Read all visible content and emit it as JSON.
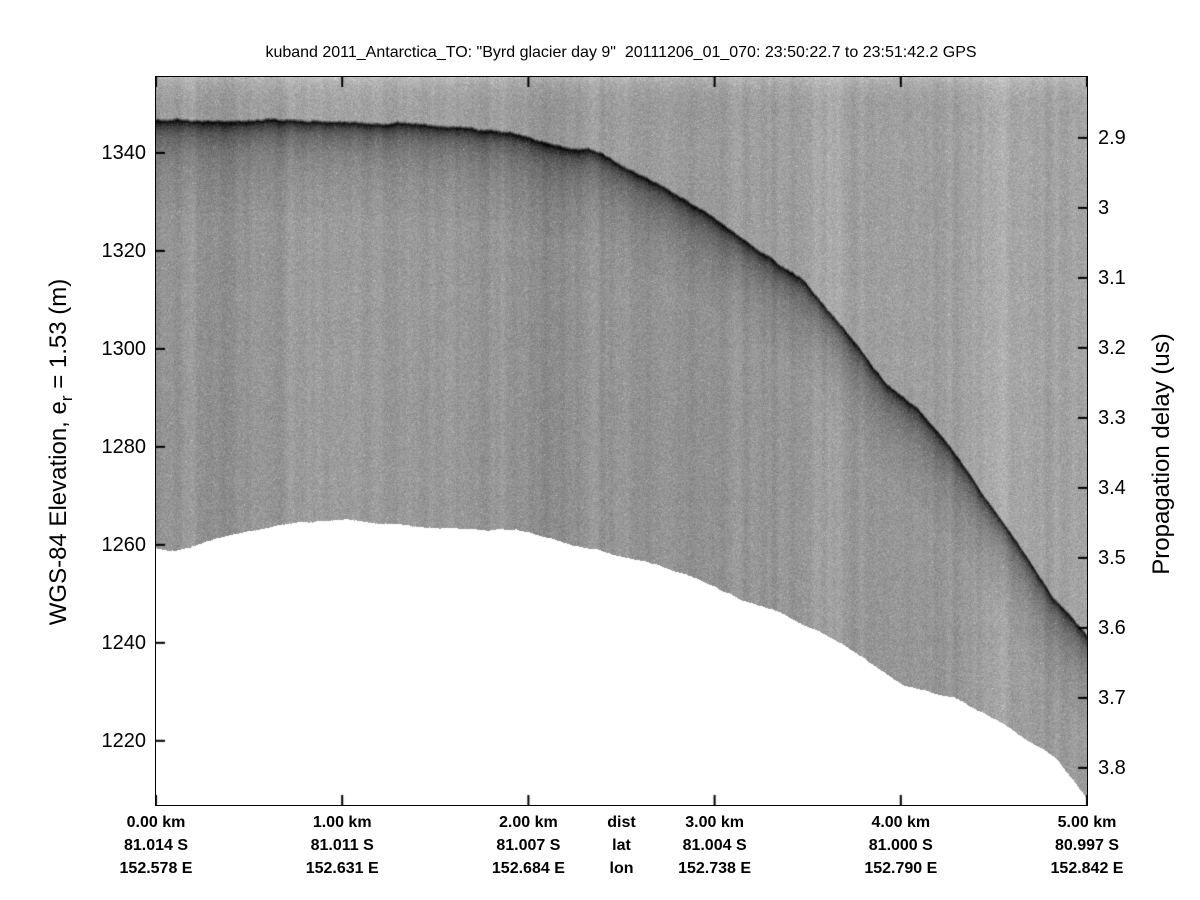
{
  "title": "kuband 2011_Antarctica_TO: \"Byrd glacier day 9\"  20111206_01_070: 23:50:22.7 to 23:51:42.2 GPS",
  "left_axis": {
    "label_pre": "WGS-84 Elevation, e",
    "label_sub": "r",
    "label_post": " = 1.53 (m)",
    "ticks": [
      "1340",
      "1320",
      "1300",
      "1280",
      "1260",
      "1240",
      "1220"
    ]
  },
  "right_axis": {
    "label": "Propagation delay (us)",
    "ticks": [
      "2.9",
      "3",
      "3.1",
      "3.2",
      "3.3",
      "3.4",
      "3.5",
      "3.6",
      "3.7",
      "3.8"
    ]
  },
  "x_axis": {
    "header": {
      "dist": "dist",
      "lat": "lat",
      "lon": "lon"
    },
    "columns": [
      {
        "dist": "0.00 km",
        "lat": "81.014 S",
        "lon": "152.578 E"
      },
      {
        "dist": "1.00 km",
        "lat": "81.011 S",
        "lon": "152.631 E"
      },
      {
        "dist": "2.00 km",
        "lat": "81.007 S",
        "lon": "152.684 E"
      },
      {
        "dist": "3.00 km",
        "lat": "81.004 S",
        "lon": "152.738 E"
      },
      {
        "dist": "4.00 km",
        "lat": "81.000 S",
        "lon": "152.790 E"
      },
      {
        "dist": "5.00 km",
        "lat": "80.997 S",
        "lon": "152.842 E"
      }
    ]
  },
  "chart_data": {
    "type": "heatmap",
    "subtype": "radar-echogram",
    "title": "kuband 2011_Antarctica_TO: \"Byrd glacier day 9\"  20111206_01_070: 23:50:22.7 to 23:51:42.2 GPS",
    "left_ylabel": "WGS-84 Elevation, e_r = 1.53 (m)",
    "right_ylabel": "Propagation delay (us)",
    "x_label_rows": [
      "dist",
      "lat",
      "lon"
    ],
    "x_km": [
      0,
      1,
      2,
      3,
      4,
      5
    ],
    "x_lat_S": [
      81.014,
      81.011,
      81.007,
      81.004,
      81.0,
      80.997
    ],
    "x_lon_E": [
      152.578,
      152.631,
      152.684,
      152.738,
      152.79,
      152.842
    ],
    "x_lim_km": [
      0,
      5
    ],
    "left_ylim": [
      1206.9,
      1355.5
    ],
    "left_yticks": [
      1340,
      1320,
      1300,
      1280,
      1260,
      1240,
      1220
    ],
    "right_ylim": [
      2.813,
      3.853
    ],
    "right_yticks": [
      2.9,
      3.0,
      3.1,
      3.2,
      3.3,
      3.4,
      3.5,
      3.6,
      3.7,
      3.8
    ],
    "header_position_km": 2.5,
    "grid": false,
    "legend": false,
    "series": [
      {
        "name": "ice-surface-echo",
        "x_km": [
          0.0,
          0.5,
          1.0,
          1.5,
          1.86,
          2.13,
          2.4,
          2.67,
          2.94,
          3.21,
          3.48,
          3.75,
          3.91,
          4.09,
          4.27,
          4.45,
          4.63,
          4.81,
          5.0
        ],
        "elevation_m": [
          1346.5,
          1347.0,
          1346.8,
          1345.6,
          1344.3,
          1342.2,
          1339.6,
          1333.9,
          1328.3,
          1320.8,
          1314.0,
          1302.0,
          1293.6,
          1288.1,
          1279.3,
          1269.1,
          1259.5,
          1249.2,
          1240.9
        ]
      },
      {
        "name": "data-window-bottom",
        "x_km": [
          0.0,
          0.11,
          0.4,
          0.73,
          1.0,
          1.32,
          1.54,
          1.93,
          2.25,
          2.62,
          2.9,
          3.15,
          3.35,
          3.7,
          4.02,
          4.29,
          4.56,
          4.83,
          5.0
        ],
        "elevation_m": [
          1259.3,
          1259.1,
          1261.9,
          1264.6,
          1265.0,
          1264.2,
          1263.5,
          1263.3,
          1260.3,
          1257.2,
          1253.7,
          1249.2,
          1246.9,
          1239.5,
          1231.7,
          1229.2,
          1223.5,
          1216.5,
          1208.1
        ]
      }
    ],
    "colors": {
      "background_gray": "#999999",
      "surface_echo_dark": "#1f1f1f",
      "no_data_white": "#ffffff",
      "axis": "#000000"
    }
  }
}
